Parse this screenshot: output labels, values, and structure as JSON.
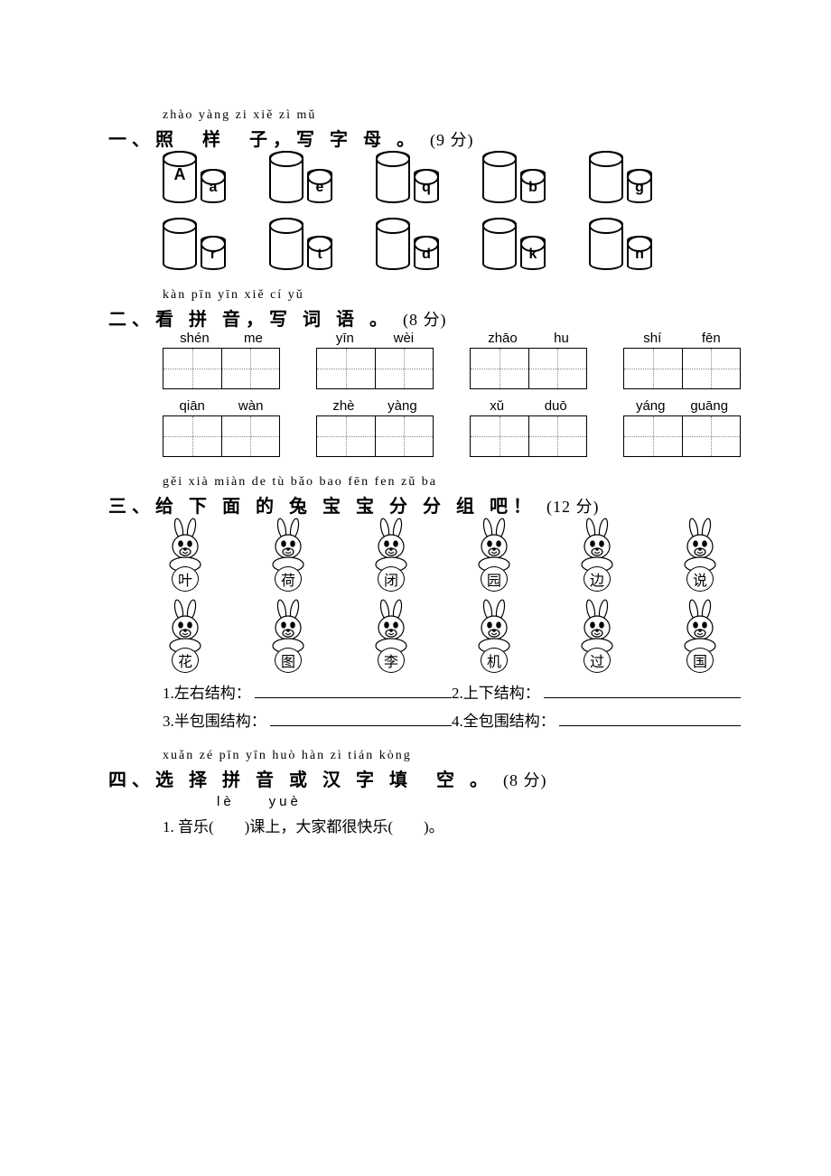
{
  "section1": {
    "pinyin": "zhào yàng zi  xiě zì mǔ",
    "title": "一、照　样　子，写 字 母 。",
    "score": "(9 分)",
    "row1": [
      {
        "big": "A",
        "small": "a"
      },
      {
        "big": "",
        "small": "e"
      },
      {
        "big": "",
        "small": "q"
      },
      {
        "big": "",
        "small": "b"
      },
      {
        "big": "",
        "small": "g"
      }
    ],
    "row2": [
      {
        "big": "",
        "small": "r"
      },
      {
        "big": "",
        "small": "t"
      },
      {
        "big": "",
        "small": "d"
      },
      {
        "big": "",
        "small": "k"
      },
      {
        "big": "",
        "small": "n"
      }
    ]
  },
  "section2": {
    "pinyin": "kàn pīn yīn  xiě cí yǔ",
    "title": "二、看 拼 音，写 词 语 。",
    "score": "(8 分)",
    "row1": [
      {
        "s1": "shén",
        "s2": "me"
      },
      {
        "s1": "yīn",
        "s2": "wèi"
      },
      {
        "s1": "zhāo",
        "s2": "hu"
      },
      {
        "s1": "shí",
        "s2": "fēn"
      }
    ],
    "row2": [
      {
        "s1": "qiān",
        "s2": "wàn"
      },
      {
        "s1": "zhè",
        "s2": "yàng"
      },
      {
        "s1": "xǔ",
        "s2": "duō"
      },
      {
        "s1": "yáng",
        "s2": "guāng"
      }
    ]
  },
  "section3": {
    "pinyin": "gěi xià miàn de tù bǎo bao fēn fen zǔ ba",
    "title": "三、给 下 面 的 兔 宝 宝 分 分 组 吧！",
    "score": "(12 分)",
    "rabbits_row1": [
      "叶",
      "荷",
      "闭",
      "园",
      "边",
      "说"
    ],
    "rabbits_row2": [
      "花",
      "图",
      "李",
      "机",
      "过",
      "国"
    ],
    "struct1_num": "1.",
    "struct1_label": "左右结构：",
    "struct2_num": "2.",
    "struct2_label": "上下结构：",
    "struct3_num": "3.",
    "struct3_label": "半包围结构：",
    "struct4_num": "4.",
    "struct4_label": "全包围结构："
  },
  "section4": {
    "pinyin": "xuǎn zé pīn yīn huò hàn zì tián kòng",
    "title": "四、选 择 拼 音 或 汉 字 填　空 。",
    "score": "(8 分)",
    "item1_pinyin": "lè　　yuè",
    "item1_text": "1. 音乐(　　)课上，大家都很快乐(　　)。"
  }
}
